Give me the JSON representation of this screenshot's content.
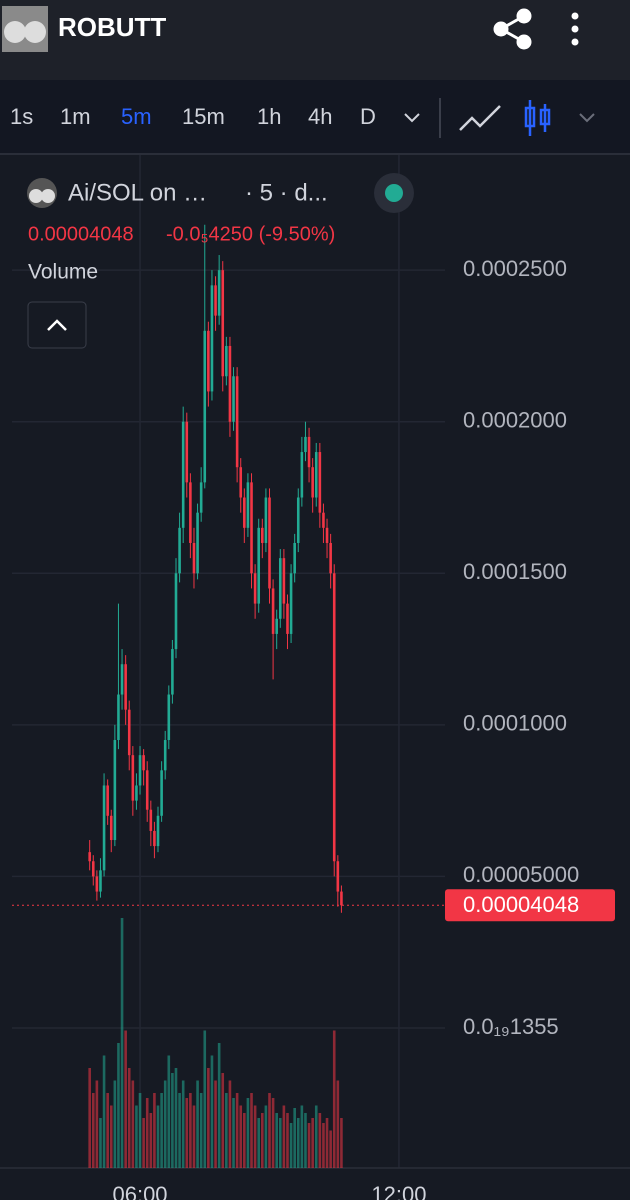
{
  "header": {
    "title": "ROBUTT"
  },
  "toolbar": {
    "intervals": [
      "1s",
      "1m",
      "5m",
      "15m",
      "1h",
      "4h",
      "D"
    ],
    "active_interval": 2
  },
  "legend": {
    "symbol": "Ai/SOL on …",
    "details": "· 5 · d...",
    "price": "0.00004048",
    "change": "-0.0₅4250 (-9.50%)",
    "indicator": "Volume"
  },
  "chart_data": {
    "type": "candlestick",
    "x": [
      290,
      295,
      300,
      305,
      310,
      315,
      320,
      325,
      330,
      335,
      340,
      345,
      350,
      355,
      360,
      365,
      370,
      375,
      380,
      385,
      390,
      395,
      400,
      405,
      410,
      415,
      420,
      425,
      430,
      435,
      440,
      445,
      450,
      455,
      460,
      465,
      470,
      475,
      480,
      485,
      490,
      495,
      500,
      505,
      510,
      515,
      520,
      525,
      530,
      535,
      540,
      545,
      550,
      555,
      560,
      565,
      570,
      575,
      580,
      585,
      590,
      595,
      600,
      605,
      610,
      615,
      620,
      625,
      630,
      635,
      640
    ],
    "open": [
      5.8e-05,
      5.5e-05,
      5e-05,
      4.5e-05,
      5.2e-05,
      8e-05,
      7e-05,
      6.2e-05,
      9.5e-05,
      0.00011,
      0.00012,
      0.000105,
      9e-05,
      7.5e-05,
      8e-05,
      9e-05,
      8.5e-05,
      7.2e-05,
      6.5e-05,
      6e-05,
      7e-05,
      8.5e-05,
      9.5e-05,
      0.00011,
      0.000125,
      0.00015,
      0.000165,
      0.0002,
      0.00018,
      0.00016,
      0.00015,
      0.00017,
      0.00018,
      0.00023,
      0.00021,
      0.000245,
      0.000235,
      0.00025,
      0.000215,
      0.000225,
      0.0002,
      0.000215,
      0.000185,
      0.000175,
      0.000165,
      0.00018,
      0.00015,
      0.00014,
      0.000165,
      0.00016,
      0.000175,
      0.000145,
      0.00013,
      0.000135,
      0.000155,
      0.00014,
      0.00013,
      0.00015,
      0.00016,
      0.000175,
      0.00019,
      0.000195,
      0.000185,
      0.000175,
      0.00019,
      0.00017,
      0.000165,
      0.00016,
      0.00015,
      5.5e-05,
      4.5e-05
    ],
    "high": [
      6.2e-05,
      5.7e-05,
      5.2e-05,
      5.6e-05,
      8.4e-05,
      8.2e-05,
      7.2e-05,
      0.0001,
      0.00014,
      0.000125,
      0.000123,
      0.000108,
      9.3e-05,
      8.4e-05,
      9.3e-05,
      9.2e-05,
      8.8e-05,
      7.5e-05,
      6.8e-05,
      7.3e-05,
      8.8e-05,
      9.8e-05,
      0.000113,
      0.000128,
      0.000155,
      0.00017,
      0.000205,
      0.000203,
      0.000183,
      0.000165,
      0.000173,
      0.000185,
      0.000265,
      0.000233,
      0.00025,
      0.000248,
      0.000255,
      0.000253,
      0.000228,
      0.000228,
      0.000218,
      0.000218,
      0.000188,
      0.000178,
      0.000183,
      0.000183,
      0.000153,
      0.000168,
      0.000168,
      0.000178,
      0.000178,
      0.000148,
      0.000138,
      0.000158,
      0.000158,
      0.000143,
      0.000153,
      0.000163,
      0.000178,
      0.000195,
      0.0002,
      0.000198,
      0.000188,
      0.000193,
      0.000193,
      0.000173,
      0.000168,
      0.000163,
      0.000153,
      5.7e-05,
      4.7e-05
    ],
    "low": [
      5.2e-05,
      4.7e-05,
      4.2e-05,
      4.3e-05,
      5e-05,
      6.7e-05,
      5.8e-05,
      6e-05,
      9.2e-05,
      0.000105,
      0.0001,
      8.5e-05,
      7e-05,
      7.2e-05,
      7.7e-05,
      8e-05,
      6.8e-05,
      6e-05,
      5.6e-05,
      5.8e-05,
      6.8e-05,
      8.2e-05,
      9.2e-05,
      0.000107,
      0.000122,
      0.000147,
      0.00016,
      0.000175,
      0.000155,
      0.000145,
      0.000148,
      0.000167,
      0.000178,
      0.000205,
      0.000207,
      0.00023,
      0.000232,
      0.00021,
      0.000212,
      0.000195,
      0.000197,
      0.00018,
      0.00017,
      0.00016,
      0.000162,
      0.000145,
      0.000135,
      0.000137,
      0.000155,
      0.000157,
      0.00014,
      0.000115,
      0.000125,
      0.000132,
      0.000135,
      0.000125,
      0.000127,
      0.000147,
      0.000157,
      0.000172,
      0.000187,
      0.00018,
      0.00017,
      0.000172,
      0.000165,
      0.00016,
      0.000155,
      0.000145,
      5e-05,
      4e-05,
      3.8e-05
    ],
    "close": [
      5.5e-05,
      5e-05,
      4.5e-05,
      5.2e-05,
      8e-05,
      7e-05,
      6.2e-05,
      9.5e-05,
      0.00011,
      0.00012,
      0.000105,
      9e-05,
      7.5e-05,
      8e-05,
      9e-05,
      8.5e-05,
      7.2e-05,
      6.5e-05,
      6e-05,
      7e-05,
      8.5e-05,
      9.5e-05,
      0.00011,
      0.000125,
      0.00015,
      0.000165,
      0.0002,
      0.00018,
      0.00016,
      0.00015,
      0.00017,
      0.00018,
      0.00023,
      0.00021,
      0.000245,
      0.000235,
      0.00025,
      0.000215,
      0.000225,
      0.0002,
      0.000215,
      0.000185,
      0.000175,
      0.000165,
      0.00018,
      0.00015,
      0.00014,
      0.000165,
      0.00016,
      0.000175,
      0.000145,
      0.00013,
      0.000135,
      0.000155,
      0.00014,
      0.00013,
      0.00015,
      0.00016,
      0.000175,
      0.00019,
      0.000195,
      0.000185,
      0.000175,
      0.00019,
      0.00017,
      0.000165,
      0.00016,
      0.00015,
      5.5e-05,
      4.5e-05,
      4.048e-05
    ],
    "volume": [
      40,
      30,
      35,
      20,
      45,
      30,
      25,
      35,
      50,
      100,
      55,
      40,
      35,
      25,
      30,
      20,
      28,
      22,
      30,
      25,
      30,
      35,
      45,
      38,
      40,
      30,
      35,
      28,
      30,
      25,
      35,
      30,
      55,
      40,
      45,
      35,
      50,
      38,
      30,
      35,
      28,
      30,
      25,
      22,
      28,
      30,
      25,
      20,
      22,
      25,
      30,
      28,
      22,
      20,
      25,
      22,
      18,
      24,
      20,
      25,
      22,
      18,
      20,
      25,
      22,
      18,
      20,
      15,
      55,
      35,
      20
    ],
    "up_color": "#22ab94",
    "down_color": "#f23645",
    "xlim": [
      182,
      784
    ],
    "ylim": [
      -4.62e-05,
      0.000288
    ],
    "xticks": [
      {
        "value": 360,
        "label": "06:00"
      },
      {
        "value": 720,
        "label": "12:00"
      }
    ],
    "yticks": [
      {
        "value": 0.00025,
        "label": "0.0002500"
      },
      {
        "value": 0.0002,
        "label": "0.0002000"
      },
      {
        "value": 0.00015,
        "label": "0.0001500"
      },
      {
        "value": 0.0001,
        "label": "0.0001000"
      },
      {
        "value": 5e-05,
        "label": "0.00005000"
      },
      {
        "value": 1.355e-20,
        "label": "0.0₁₉1355"
      }
    ],
    "grid": true
  }
}
